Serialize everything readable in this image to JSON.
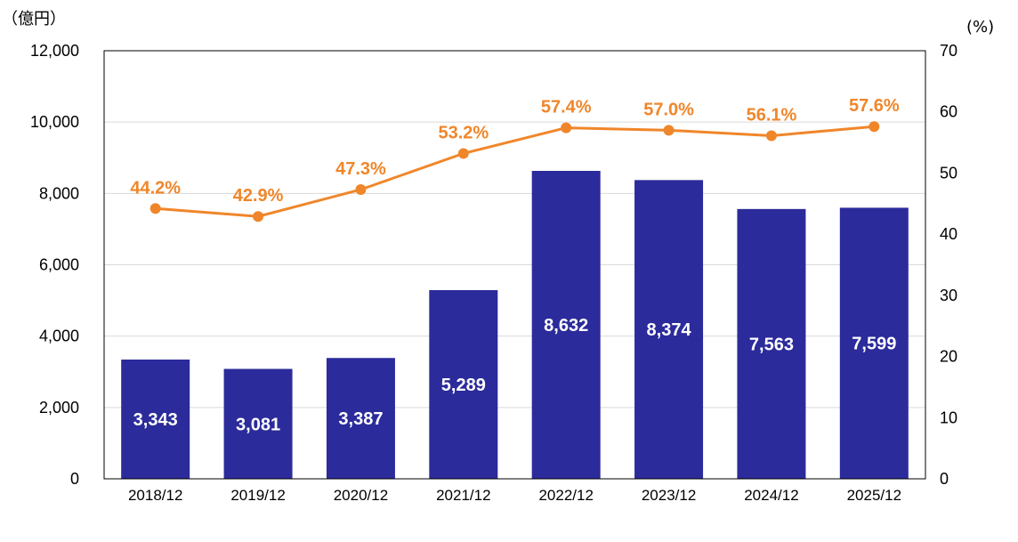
{
  "chart_data": {
    "type": "bar+line",
    "categories": [
      "2018/12",
      "2019/12",
      "2020/12",
      "2021/12",
      "2022/12",
      "2023/12",
      "2024/12",
      "2025/12"
    ],
    "series": [
      {
        "type": "bar",
        "axis": "left",
        "values": [
          3343,
          3081,
          3387,
          5289,
          8632,
          8374,
          7563,
          7599
        ],
        "labels": [
          "3,343",
          "3,081",
          "3,387",
          "5,289",
          "8,632",
          "8,374",
          "7,563",
          "7,599"
        ]
      },
      {
        "type": "line",
        "axis": "right",
        "values": [
          44.2,
          42.9,
          47.3,
          53.2,
          57.4,
          57.0,
          56.1,
          57.6
        ],
        "labels": [
          "44.2%",
          "42.9%",
          "47.3%",
          "53.2%",
          "57.4%",
          "57.0%",
          "56.1%",
          "57.6%"
        ]
      }
    ],
    "y_left": {
      "unit_label": "（億円）",
      "ylim": [
        0,
        12000
      ],
      "ticks": [
        0,
        2000,
        4000,
        6000,
        8000,
        10000,
        12000
      ],
      "tick_labels": [
        "0",
        "2,000",
        "4,000",
        "6,000",
        "8,000",
        "10,000",
        "12,000"
      ]
    },
    "y_right": {
      "unit_label": "(%)",
      "ylim": [
        0,
        70
      ],
      "ticks": [
        0,
        10,
        20,
        30,
        40,
        50,
        60,
        70
      ],
      "tick_labels": [
        "0",
        "10",
        "20",
        "30",
        "40",
        "50",
        "60",
        "70"
      ]
    },
    "grid": true,
    "colors": {
      "bar": "#2b2b9b",
      "line": "#f0862a",
      "grid": "#d9d9d9",
      "frame": "#000000"
    }
  }
}
